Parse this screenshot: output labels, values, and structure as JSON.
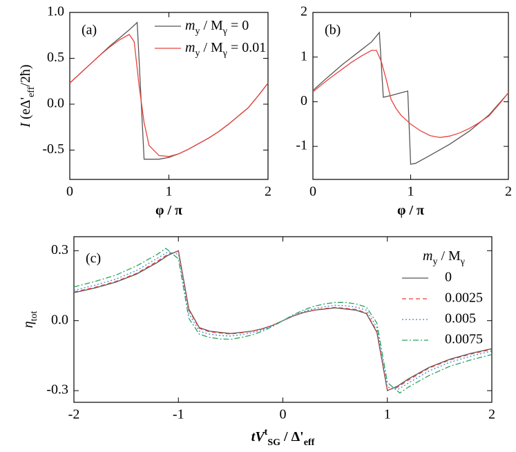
{
  "chart_data": [
    {
      "type": "line",
      "panel_label": "(a)",
      "xlabel": [
        "φ / π"
      ],
      "ylabel": [
        "I",
        " (eΔ'",
        {
          "sub": "eff"
        },
        "/2ħ)"
      ],
      "xlim": [
        0,
        2
      ],
      "ylim": [
        -0.82,
        1.0
      ],
      "xticks": [
        0,
        1,
        2
      ],
      "yticks": [
        {
          "value": 1,
          "label": "1.0"
        },
        0.5,
        {
          "value": 0,
          "label": "0.0"
        },
        -0.5
      ],
      "series": [
        {
          "name": [
            "m",
            {
              "sub": "y"
            },
            " / M",
            {
              "sub": "γ"
            },
            " = 0"
          ],
          "color": "#555555",
          "dash": "solid",
          "x": [
            0,
            0.1,
            0.2,
            0.3,
            0.4,
            0.5,
            0.6,
            0.68,
            0.75,
            0.8,
            0.9,
            1.0,
            1.1,
            1.2,
            1.3,
            1.4,
            1.5,
            1.6,
            1.7,
            1.8,
            1.9,
            2.0
          ],
          "values": [
            0.23,
            0.33,
            0.43,
            0.53,
            0.63,
            0.72,
            0.81,
            0.89,
            -0.6,
            -0.6,
            -0.6,
            -0.58,
            -0.54,
            -0.49,
            -0.43,
            -0.37,
            -0.3,
            -0.22,
            -0.13,
            -0.04,
            0.09,
            0.23
          ]
        },
        {
          "name": [
            "m",
            {
              "sub": "y"
            },
            " / M",
            {
              "sub": "γ"
            },
            " = 0.01"
          ],
          "color": "#e8413c",
          "dash": "solid",
          "x": [
            0,
            0.1,
            0.2,
            0.3,
            0.4,
            0.5,
            0.6,
            0.65,
            0.7,
            0.75,
            0.8,
            0.9,
            1.0,
            1.1,
            1.2,
            1.3,
            1.4,
            1.5,
            1.6,
            1.7,
            1.8,
            1.9,
            2.0
          ],
          "values": [
            0.23,
            0.33,
            0.43,
            0.53,
            0.62,
            0.7,
            0.76,
            0.68,
            0.2,
            -0.2,
            -0.45,
            -0.56,
            -0.57,
            -0.54,
            -0.49,
            -0.43,
            -0.37,
            -0.3,
            -0.22,
            -0.13,
            -0.04,
            0.09,
            0.23
          ]
        }
      ]
    },
    {
      "type": "line",
      "panel_label": "(b)",
      "xlabel": [
        "φ / π"
      ],
      "xlim": [
        0,
        2
      ],
      "ylim": [
        -1.74,
        2
      ],
      "xticks": [
        0,
        1,
        2
      ],
      "yticks": [
        2,
        1,
        0,
        -1
      ],
      "series": [
        {
          "color": "#555555",
          "dash": "solid",
          "x": [
            0,
            0.1,
            0.2,
            0.3,
            0.4,
            0.5,
            0.6,
            0.68,
            0.72,
            0.8,
            0.9,
            0.97,
            1.0,
            1.05,
            1.2,
            1.4,
            1.6,
            1.8,
            2.0
          ],
          "values": [
            0.25,
            0.45,
            0.64,
            0.83,
            1.0,
            1.17,
            1.34,
            1.55,
            0.1,
            0.14,
            0.2,
            0.24,
            -1.4,
            -1.38,
            -1.2,
            -0.95,
            -0.66,
            -0.3,
            0.2
          ]
        },
        {
          "color": "#e8413c",
          "dash": "solid",
          "x": [
            0,
            0.1,
            0.2,
            0.3,
            0.4,
            0.5,
            0.6,
            0.65,
            0.7,
            0.75,
            0.8,
            0.85,
            0.9,
            1.0,
            1.1,
            1.2,
            1.3,
            1.4,
            1.5,
            1.6,
            1.7,
            1.8,
            1.9,
            2.0
          ],
          "values": [
            0.22,
            0.4,
            0.57,
            0.73,
            0.89,
            1.03,
            1.15,
            1.15,
            0.9,
            0.5,
            0.05,
            -0.15,
            -0.3,
            -0.5,
            -0.65,
            -0.76,
            -0.8,
            -0.77,
            -0.7,
            -0.6,
            -0.47,
            -0.32,
            -0.07,
            0.2
          ]
        }
      ]
    },
    {
      "type": "line",
      "panel_label": "(c)",
      "xlabel": [
        "t",
        "V",
        {
          "sup": "t"
        },
        {
          "sub": "SG"
        },
        " / Δ'",
        {
          "sub": "eff"
        }
      ],
      "ylabel": [
        "η",
        {
          "sub": "tot"
        }
      ],
      "legend_title": [
        "m",
        {
          "sub": "y"
        },
        " / M",
        {
          "sub": "γ"
        }
      ],
      "xlim": [
        -2,
        2
      ],
      "ylim": [
        -0.35,
        0.36
      ],
      "xticks": [
        -2,
        -1,
        0,
        1,
        2
      ],
      "yticks": [
        0.3,
        {
          "value": 0,
          "label": "0.0"
        },
        -0.3
      ],
      "series": [
        {
          "name": "0",
          "color": "#555555",
          "dash": "solid",
          "x": [
            -2,
            -1.8,
            -1.6,
            -1.4,
            -1.2,
            -1.1,
            -1.0,
            -0.9,
            -0.8,
            -0.7,
            -0.6,
            -0.5,
            -0.4,
            -0.3,
            -0.2,
            -0.1,
            0,
            0.1,
            0.2,
            0.3,
            0.4,
            0.5,
            0.6,
            0.7,
            0.8,
            0.9,
            1.0,
            1.1,
            1.2,
            1.4,
            1.6,
            1.8,
            2.0
          ],
          "values": [
            0.12,
            0.14,
            0.165,
            0.2,
            0.25,
            0.28,
            0.3,
            0.05,
            -0.03,
            -0.045,
            -0.05,
            -0.055,
            -0.05,
            -0.045,
            -0.035,
            -0.02,
            0,
            0.02,
            0.035,
            0.045,
            0.05,
            0.055,
            0.05,
            0.045,
            0.03,
            -0.05,
            -0.3,
            -0.28,
            -0.25,
            -0.2,
            -0.165,
            -0.14,
            -0.12
          ]
        },
        {
          "name": "0.0025",
          "color": "#e8413c",
          "dash": "dashed",
          "x": [
            -2,
            -1.8,
            -1.6,
            -1.4,
            -1.2,
            -1.1,
            -1.0,
            -0.9,
            -0.8,
            -0.7,
            -0.6,
            -0.5,
            -0.4,
            -0.3,
            -0.2,
            -0.1,
            0,
            0.1,
            0.2,
            0.3,
            0.4,
            0.5,
            0.6,
            0.7,
            0.8,
            0.9,
            1.0,
            1.1,
            1.2,
            1.4,
            1.6,
            1.8,
            2.0
          ],
          "values": [
            0.123,
            0.143,
            0.168,
            0.203,
            0.255,
            0.285,
            0.298,
            0.045,
            -0.033,
            -0.048,
            -0.053,
            -0.057,
            -0.052,
            -0.046,
            -0.036,
            -0.02,
            0,
            0.02,
            0.036,
            0.046,
            0.052,
            0.057,
            0.053,
            0.048,
            0.033,
            -0.045,
            -0.298,
            -0.285,
            -0.255,
            -0.203,
            -0.168,
            -0.143,
            -0.123
          ]
        },
        {
          "name": "0.005",
          "color": "#3b86d4",
          "dash": "dotted",
          "x": [
            -2,
            -1.8,
            -1.6,
            -1.4,
            -1.2,
            -1.1,
            -1.0,
            -0.9,
            -0.8,
            -0.7,
            -0.6,
            -0.5,
            -0.4,
            -0.3,
            -0.2,
            -0.1,
            0,
            0.1,
            0.2,
            0.3,
            0.4,
            0.5,
            0.6,
            0.7,
            0.8,
            0.9,
            1.0,
            1.1,
            1.2,
            1.4,
            1.6,
            1.8,
            2.0
          ],
          "values": [
            0.13,
            0.152,
            0.178,
            0.215,
            0.268,
            0.295,
            0.285,
            0.03,
            -0.045,
            -0.058,
            -0.064,
            -0.066,
            -0.06,
            -0.052,
            -0.04,
            -0.022,
            0,
            0.022,
            0.04,
            0.052,
            0.06,
            0.066,
            0.064,
            0.058,
            0.045,
            -0.03,
            -0.285,
            -0.295,
            -0.268,
            -0.215,
            -0.178,
            -0.152,
            -0.13
          ]
        },
        {
          "name": "0.0075",
          "color": "#2aa05a",
          "dash": "dashdot",
          "x": [
            -2,
            -1.8,
            -1.6,
            -1.4,
            -1.2,
            -1.12,
            -1.0,
            -0.9,
            -0.8,
            -0.7,
            -0.6,
            -0.5,
            -0.4,
            -0.3,
            -0.2,
            -0.1,
            0,
            0.1,
            0.2,
            0.3,
            0.4,
            0.5,
            0.6,
            0.7,
            0.8,
            0.9,
            1.0,
            1.12,
            1.2,
            1.4,
            1.6,
            1.8,
            2.0
          ],
          "values": [
            0.145,
            0.168,
            0.195,
            0.235,
            0.285,
            0.31,
            0.265,
            0.01,
            -0.058,
            -0.072,
            -0.078,
            -0.08,
            -0.072,
            -0.062,
            -0.046,
            -0.025,
            0,
            0.025,
            0.046,
            0.062,
            0.072,
            0.078,
            0.078,
            0.072,
            0.058,
            -0.01,
            -0.265,
            -0.31,
            -0.285,
            -0.235,
            -0.195,
            -0.168,
            -0.145
          ]
        }
      ]
    }
  ]
}
